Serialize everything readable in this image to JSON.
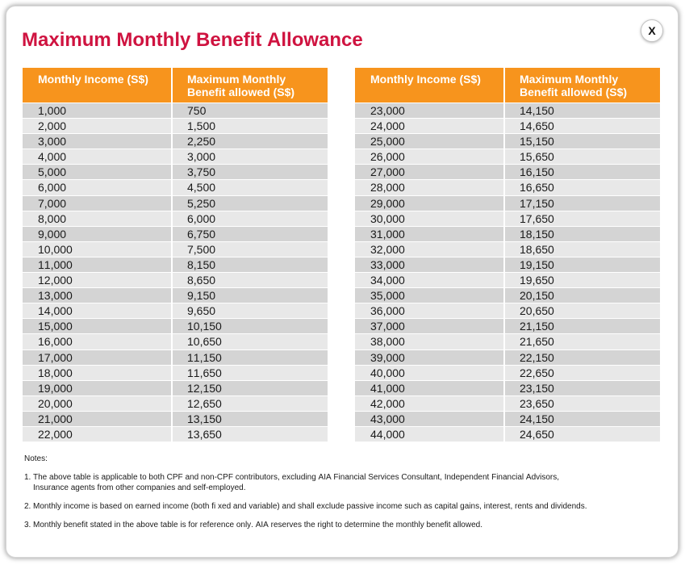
{
  "dialog": {
    "title": "Maximum Monthly Benefit Allowance",
    "close_button": {
      "label": "X",
      "icon": "close-icon"
    }
  },
  "colors": {
    "title": "#cf1340",
    "header_bg": "#f7941d",
    "header_text": "#ffffff",
    "row_odd": "#d4d4d4",
    "row_even": "#e8e8e8",
    "text": "#1a1a1a"
  },
  "tables": [
    {
      "headers": [
        "Monthly Income (S$)",
        "Maximum Monthly Benefit allowed (S$)"
      ],
      "rows": [
        [
          "1,000",
          "750"
        ],
        [
          "2,000",
          "1,500"
        ],
        [
          "3,000",
          "2,250"
        ],
        [
          "4,000",
          "3,000"
        ],
        [
          "5,000",
          "3,750"
        ],
        [
          "6,000",
          "4,500"
        ],
        [
          "7,000",
          "5,250"
        ],
        [
          "8,000",
          "6,000"
        ],
        [
          "9,000",
          "6,750"
        ],
        [
          "10,000",
          "7,500"
        ],
        [
          "11,000",
          "8,150"
        ],
        [
          "12,000",
          "8,650"
        ],
        [
          "13,000",
          "9,150"
        ],
        [
          "14,000",
          "9,650"
        ],
        [
          "15,000",
          "10,150"
        ],
        [
          "16,000",
          "10,650"
        ],
        [
          "17,000",
          "11,150"
        ],
        [
          "18,000",
          "11,650"
        ],
        [
          "19,000",
          "12,150"
        ],
        [
          "20,000",
          "12,650"
        ],
        [
          "21,000",
          "13,150"
        ],
        [
          "22,000",
          "13,650"
        ]
      ]
    },
    {
      "headers": [
        "Monthly Income (S$)",
        "Maximum Monthly Benefit allowed (S$)"
      ],
      "rows": [
        [
          "23,000",
          "14,150"
        ],
        [
          "24,000",
          "14,650"
        ],
        [
          "25,000",
          "15,150"
        ],
        [
          "26,000",
          "15,650"
        ],
        [
          "27,000",
          "16,150"
        ],
        [
          "28,000",
          "16,650"
        ],
        [
          "29,000",
          "17,150"
        ],
        [
          "30,000",
          "17,650"
        ],
        [
          "31,000",
          "18,150"
        ],
        [
          "32,000",
          "18,650"
        ],
        [
          "33,000",
          "19,150"
        ],
        [
          "34,000",
          "19,650"
        ],
        [
          "35,000",
          "20,150"
        ],
        [
          "36,000",
          "20,650"
        ],
        [
          "37,000",
          "21,150"
        ],
        [
          "38,000",
          "21,650"
        ],
        [
          "39,000",
          "22,150"
        ],
        [
          "40,000",
          "22,650"
        ],
        [
          "41,000",
          "23,150"
        ],
        [
          "42,000",
          "23,650"
        ],
        [
          "43,000",
          "24,150"
        ],
        [
          "44,000",
          "24,650"
        ]
      ]
    }
  ],
  "notes": {
    "heading": "Notes:",
    "items": [
      {
        "number": "1.",
        "text": "The above table is applicable to both CPF and non-CPF contributors, excluding AIA Financial Services Consultant, Independent Financial Advisors, Insurance agents from other companies and self-employed."
      },
      {
        "number": "2.",
        "text": "Monthly income is based on earned income (both fi xed and variable) and shall exclude passive income such as capital gains, interest, rents and dividends."
      },
      {
        "number": "3.",
        "text": "Monthly benefit stated in the above table is for reference only. AIA reserves the right to determine the monthly benefit allowed."
      }
    ]
  }
}
